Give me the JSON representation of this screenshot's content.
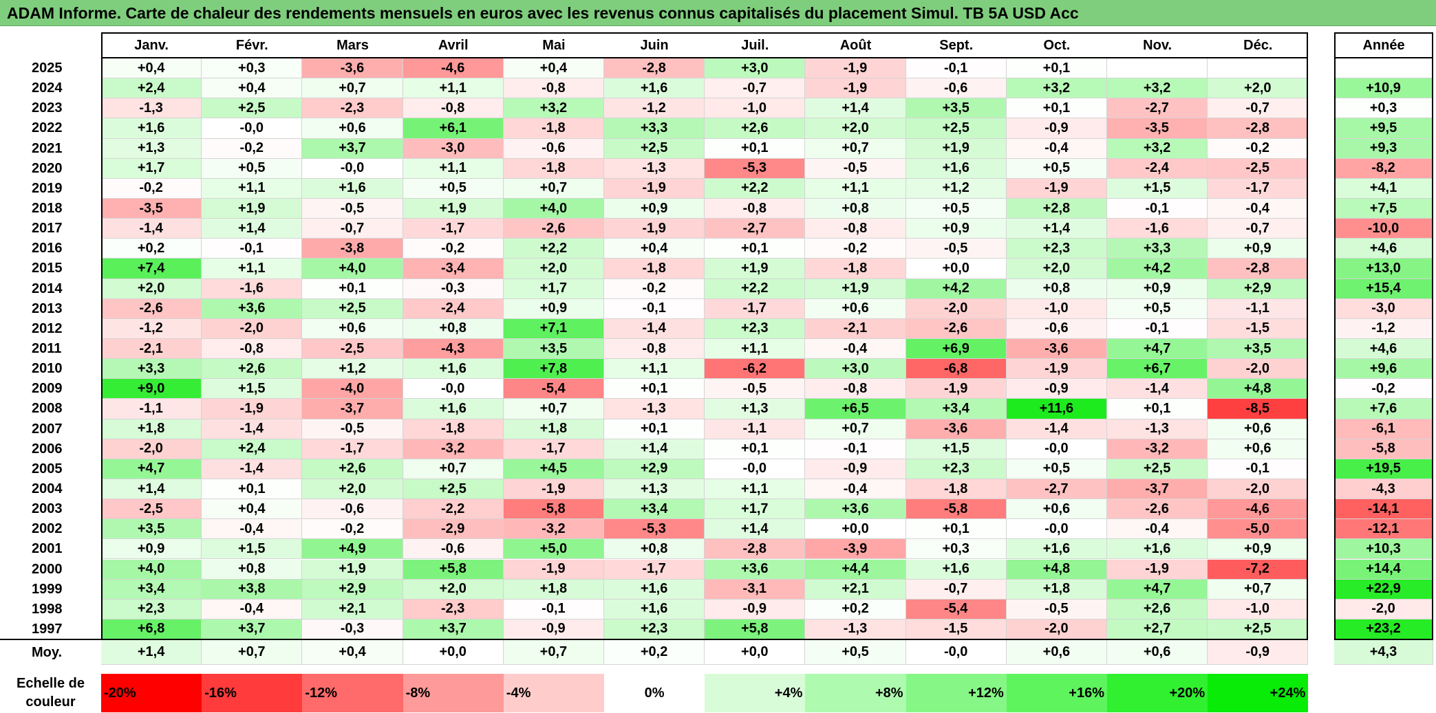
{
  "title": "ADAM Informe. Carte de chaleur des rendements mensuels en euros avec les revenus connus capitalisés du placement Simul. TB 5A USD Acc",
  "chart_data": {
    "type": "heatmap",
    "title": "ADAM Informe. Carte de chaleur des rendements mensuels en euros avec les revenus connus capitalisés du placement Simul. TB 5A USD Acc",
    "columns": [
      "Janv.",
      "Févr.",
      "Mars",
      "Avril",
      "Mai",
      "Juin",
      "Juil.",
      "Août",
      "Sept.",
      "Oct.",
      "Nov.",
      "Déc."
    ],
    "year_header": "Année",
    "rows": [
      {
        "year": "2025",
        "months": [
          "+0,4",
          "+0,3",
          "-3,6",
          "-4,6",
          "+0,4",
          "-2,8",
          "+3,0",
          "-1,9",
          "-0,1",
          "+0,1",
          "",
          ""
        ],
        "annual": ""
      },
      {
        "year": "2024",
        "months": [
          "+2,4",
          "+0,4",
          "+0,7",
          "+1,1",
          "-0,8",
          "+1,6",
          "-0,7",
          "-1,9",
          "-0,6",
          "+3,2",
          "+3,2",
          "+2,0"
        ],
        "annual": "+10,9"
      },
      {
        "year": "2023",
        "months": [
          "-1,3",
          "+2,5",
          "-2,3",
          "-0,8",
          "+3,2",
          "-1,2",
          "-1,0",
          "+1,4",
          "+3,5",
          "+0,1",
          "-2,7",
          "-0,7"
        ],
        "annual": "+0,3"
      },
      {
        "year": "2022",
        "months": [
          "+1,6",
          "-0,0",
          "+0,6",
          "+6,1",
          "-1,8",
          "+3,3",
          "+2,6",
          "+2,0",
          "+2,5",
          "-0,9",
          "-3,5",
          "-2,8"
        ],
        "annual": "+9,5"
      },
      {
        "year": "2021",
        "months": [
          "+1,3",
          "-0,2",
          "+3,7",
          "-3,0",
          "-0,6",
          "+2,5",
          "+0,1",
          "+0,7",
          "+1,9",
          "-0,4",
          "+3,2",
          "-0,2"
        ],
        "annual": "+9,3"
      },
      {
        "year": "2020",
        "months": [
          "+1,7",
          "+0,5",
          "-0,0",
          "+1,1",
          "-1,8",
          "-1,3",
          "-5,3",
          "-0,5",
          "+1,6",
          "+0,5",
          "-2,4",
          "-2,5"
        ],
        "annual": "-8,2"
      },
      {
        "year": "2019",
        "months": [
          "-0,2",
          "+1,1",
          "+1,6",
          "+0,5",
          "+0,7",
          "-1,9",
          "+2,2",
          "+1,1",
          "+1,2",
          "-1,9",
          "+1,5",
          "-1,7"
        ],
        "annual": "+4,1"
      },
      {
        "year": "2018",
        "months": [
          "-3,5",
          "+1,9",
          "-0,5",
          "+1,9",
          "+4,0",
          "+0,9",
          "-0,8",
          "+0,8",
          "+0,5",
          "+2,8",
          "-0,1",
          "-0,4"
        ],
        "annual": "+7,5"
      },
      {
        "year": "2017",
        "months": [
          "-1,4",
          "+1,4",
          "-0,7",
          "-1,7",
          "-2,6",
          "-1,9",
          "-2,7",
          "-0,8",
          "+0,9",
          "+1,4",
          "-1,6",
          "-0,7"
        ],
        "annual": "-10,0"
      },
      {
        "year": "2016",
        "months": [
          "+0,2",
          "-0,1",
          "-3,8",
          "-0,2",
          "+2,2",
          "+0,4",
          "+0,1",
          "-0,2",
          "-0,5",
          "+2,3",
          "+3,3",
          "+0,9"
        ],
        "annual": "+4,6"
      },
      {
        "year": "2015",
        "months": [
          "+7,4",
          "+1,1",
          "+4,0",
          "-3,4",
          "+2,0",
          "-1,8",
          "+1,9",
          "-1,8",
          "+0,0",
          "+2,0",
          "+4,2",
          "-2,8"
        ],
        "annual": "+13,0"
      },
      {
        "year": "2014",
        "months": [
          "+2,0",
          "-1,6",
          "+0,1",
          "-0,3",
          "+1,7",
          "-0,2",
          "+2,2",
          "+1,9",
          "+4,2",
          "+0,8",
          "+0,9",
          "+2,9"
        ],
        "annual": "+15,4"
      },
      {
        "year": "2013",
        "months": [
          "-2,6",
          "+3,6",
          "+2,5",
          "-2,4",
          "+0,9",
          "-0,1",
          "-1,7",
          "+0,6",
          "-2,0",
          "-1,0",
          "+0,5",
          "-1,1"
        ],
        "annual": "-3,0"
      },
      {
        "year": "2012",
        "months": [
          "-1,2",
          "-2,0",
          "+0,6",
          "+0,8",
          "+7,1",
          "-1,4",
          "+2,3",
          "-2,1",
          "-2,6",
          "-0,6",
          "-0,1",
          "-1,5"
        ],
        "annual": "-1,2"
      },
      {
        "year": "2011",
        "months": [
          "-2,1",
          "-0,8",
          "-2,5",
          "-4,3",
          "+3,5",
          "-0,8",
          "+1,1",
          "-0,4",
          "+6,9",
          "-3,6",
          "+4,7",
          "+3,5"
        ],
        "annual": "+4,6"
      },
      {
        "year": "2010",
        "months": [
          "+3,3",
          "+2,6",
          "+1,2",
          "+1,6",
          "+7,8",
          "+1,1",
          "-6,2",
          "+3,0",
          "-6,8",
          "-1,9",
          "+6,7",
          "-2,0"
        ],
        "annual": "+9,6"
      },
      {
        "year": "2009",
        "months": [
          "+9,0",
          "+1,5",
          "-4,0",
          "-0,0",
          "-5,4",
          "+0,1",
          "-0,5",
          "-0,8",
          "-1,9",
          "-0,9",
          "-1,4",
          "+4,8"
        ],
        "annual": "-0,2"
      },
      {
        "year": "2008",
        "months": [
          "-1,1",
          "-1,9",
          "-3,7",
          "+1,6",
          "+0,7",
          "-1,3",
          "+1,3",
          "+6,5",
          "+3,4",
          "+11,6",
          "+0,1",
          "-8,5"
        ],
        "annual": "+7,6"
      },
      {
        "year": "2007",
        "months": [
          "+1,8",
          "-1,4",
          "-0,5",
          "-1,8",
          "+1,8",
          "+0,1",
          "-1,1",
          "+0,7",
          "-3,6",
          "-1,4",
          "-1,3",
          "+0,6"
        ],
        "annual": "-6,1"
      },
      {
        "year": "2006",
        "months": [
          "-2,0",
          "+2,4",
          "-1,7",
          "-3,2",
          "-1,7",
          "+1,4",
          "+0,1",
          "-0,1",
          "+1,5",
          "-0,0",
          "-3,2",
          "+0,6"
        ],
        "annual": "-5,8"
      },
      {
        "year": "2005",
        "months": [
          "+4,7",
          "-1,4",
          "+2,6",
          "+0,7",
          "+4,5",
          "+2,9",
          "-0,0",
          "-0,9",
          "+2,3",
          "+0,5",
          "+2,5",
          "-0,1"
        ],
        "annual": "+19,5"
      },
      {
        "year": "2004",
        "months": [
          "+1,4",
          "+0,1",
          "+2,0",
          "+2,5",
          "-1,9",
          "+1,3",
          "+1,1",
          "-0,4",
          "-1,8",
          "-2,7",
          "-3,7",
          "-2,0"
        ],
        "annual": "-4,3"
      },
      {
        "year": "2003",
        "months": [
          "-2,5",
          "+0,4",
          "-0,6",
          "-2,2",
          "-5,8",
          "+3,4",
          "+1,7",
          "+3,6",
          "-5,8",
          "+0,6",
          "-2,6",
          "-4,6"
        ],
        "annual": "-14,1"
      },
      {
        "year": "2002",
        "months": [
          "+3,5",
          "-0,4",
          "-0,2",
          "-2,9",
          "-3,2",
          "-5,3",
          "+1,4",
          "+0,0",
          "+0,1",
          "-0,0",
          "-0,4",
          "-5,0"
        ],
        "annual": "-12,1"
      },
      {
        "year": "2001",
        "months": [
          "+0,9",
          "+1,5",
          "+4,9",
          "-0,6",
          "+5,0",
          "+0,8",
          "-2,8",
          "-3,9",
          "+0,3",
          "+1,6",
          "+1,6",
          "+0,9"
        ],
        "annual": "+10,3"
      },
      {
        "year": "2000",
        "months": [
          "+4,0",
          "+0,8",
          "+1,9",
          "+5,8",
          "-1,9",
          "-1,7",
          "+3,6",
          "+4,4",
          "+1,6",
          "+4,8",
          "-1,9",
          "-7,2"
        ],
        "annual": "+14,4"
      },
      {
        "year": "1999",
        "months": [
          "+3,4",
          "+3,8",
          "+2,9",
          "+2,0",
          "+1,8",
          "+1,6",
          "-3,1",
          "+2,1",
          "-0,7",
          "+1,8",
          "+4,7",
          "+0,7"
        ],
        "annual": "+22,9"
      },
      {
        "year": "1998",
        "months": [
          "+2,3",
          "-0,4",
          "+2,1",
          "-2,3",
          "-0,1",
          "+1,6",
          "-0,9",
          "+0,2",
          "-5,4",
          "-0,5",
          "+2,6",
          "-1,0"
        ],
        "annual": "-2,0"
      },
      {
        "year": "1997",
        "months": [
          "+6,8",
          "+3,7",
          "-0,3",
          "+3,7",
          "-0,9",
          "+2,3",
          "+5,8",
          "-1,3",
          "-1,5",
          "-2,0",
          "+2,7",
          "+2,5"
        ],
        "annual": "+23,2"
      }
    ],
    "average": {
      "label": "Moy.",
      "months": [
        "+1,4",
        "+0,7",
        "+0,4",
        "+0,0",
        "+0,7",
        "+0,2",
        "+0,0",
        "+0,5",
        "-0,0",
        "+0,6",
        "+0,6",
        "-0,9"
      ],
      "annual": "+4,3"
    },
    "scale": {
      "title": "Echelle de couleur",
      "labels": [
        "-20%",
        "-16%",
        "-12%",
        "-8%",
        "-4%",
        "0%",
        "+4%",
        "+8%",
        "+12%",
        "+16%",
        "+20%",
        "+24%"
      ],
      "values": [
        -20,
        -16,
        -12,
        -8,
        -4,
        0,
        4,
        8,
        12,
        16,
        20,
        24
      ]
    },
    "monthly_color_range": [
      -10,
      10
    ],
    "annual_color_range": [
      -20,
      24
    ]
  }
}
